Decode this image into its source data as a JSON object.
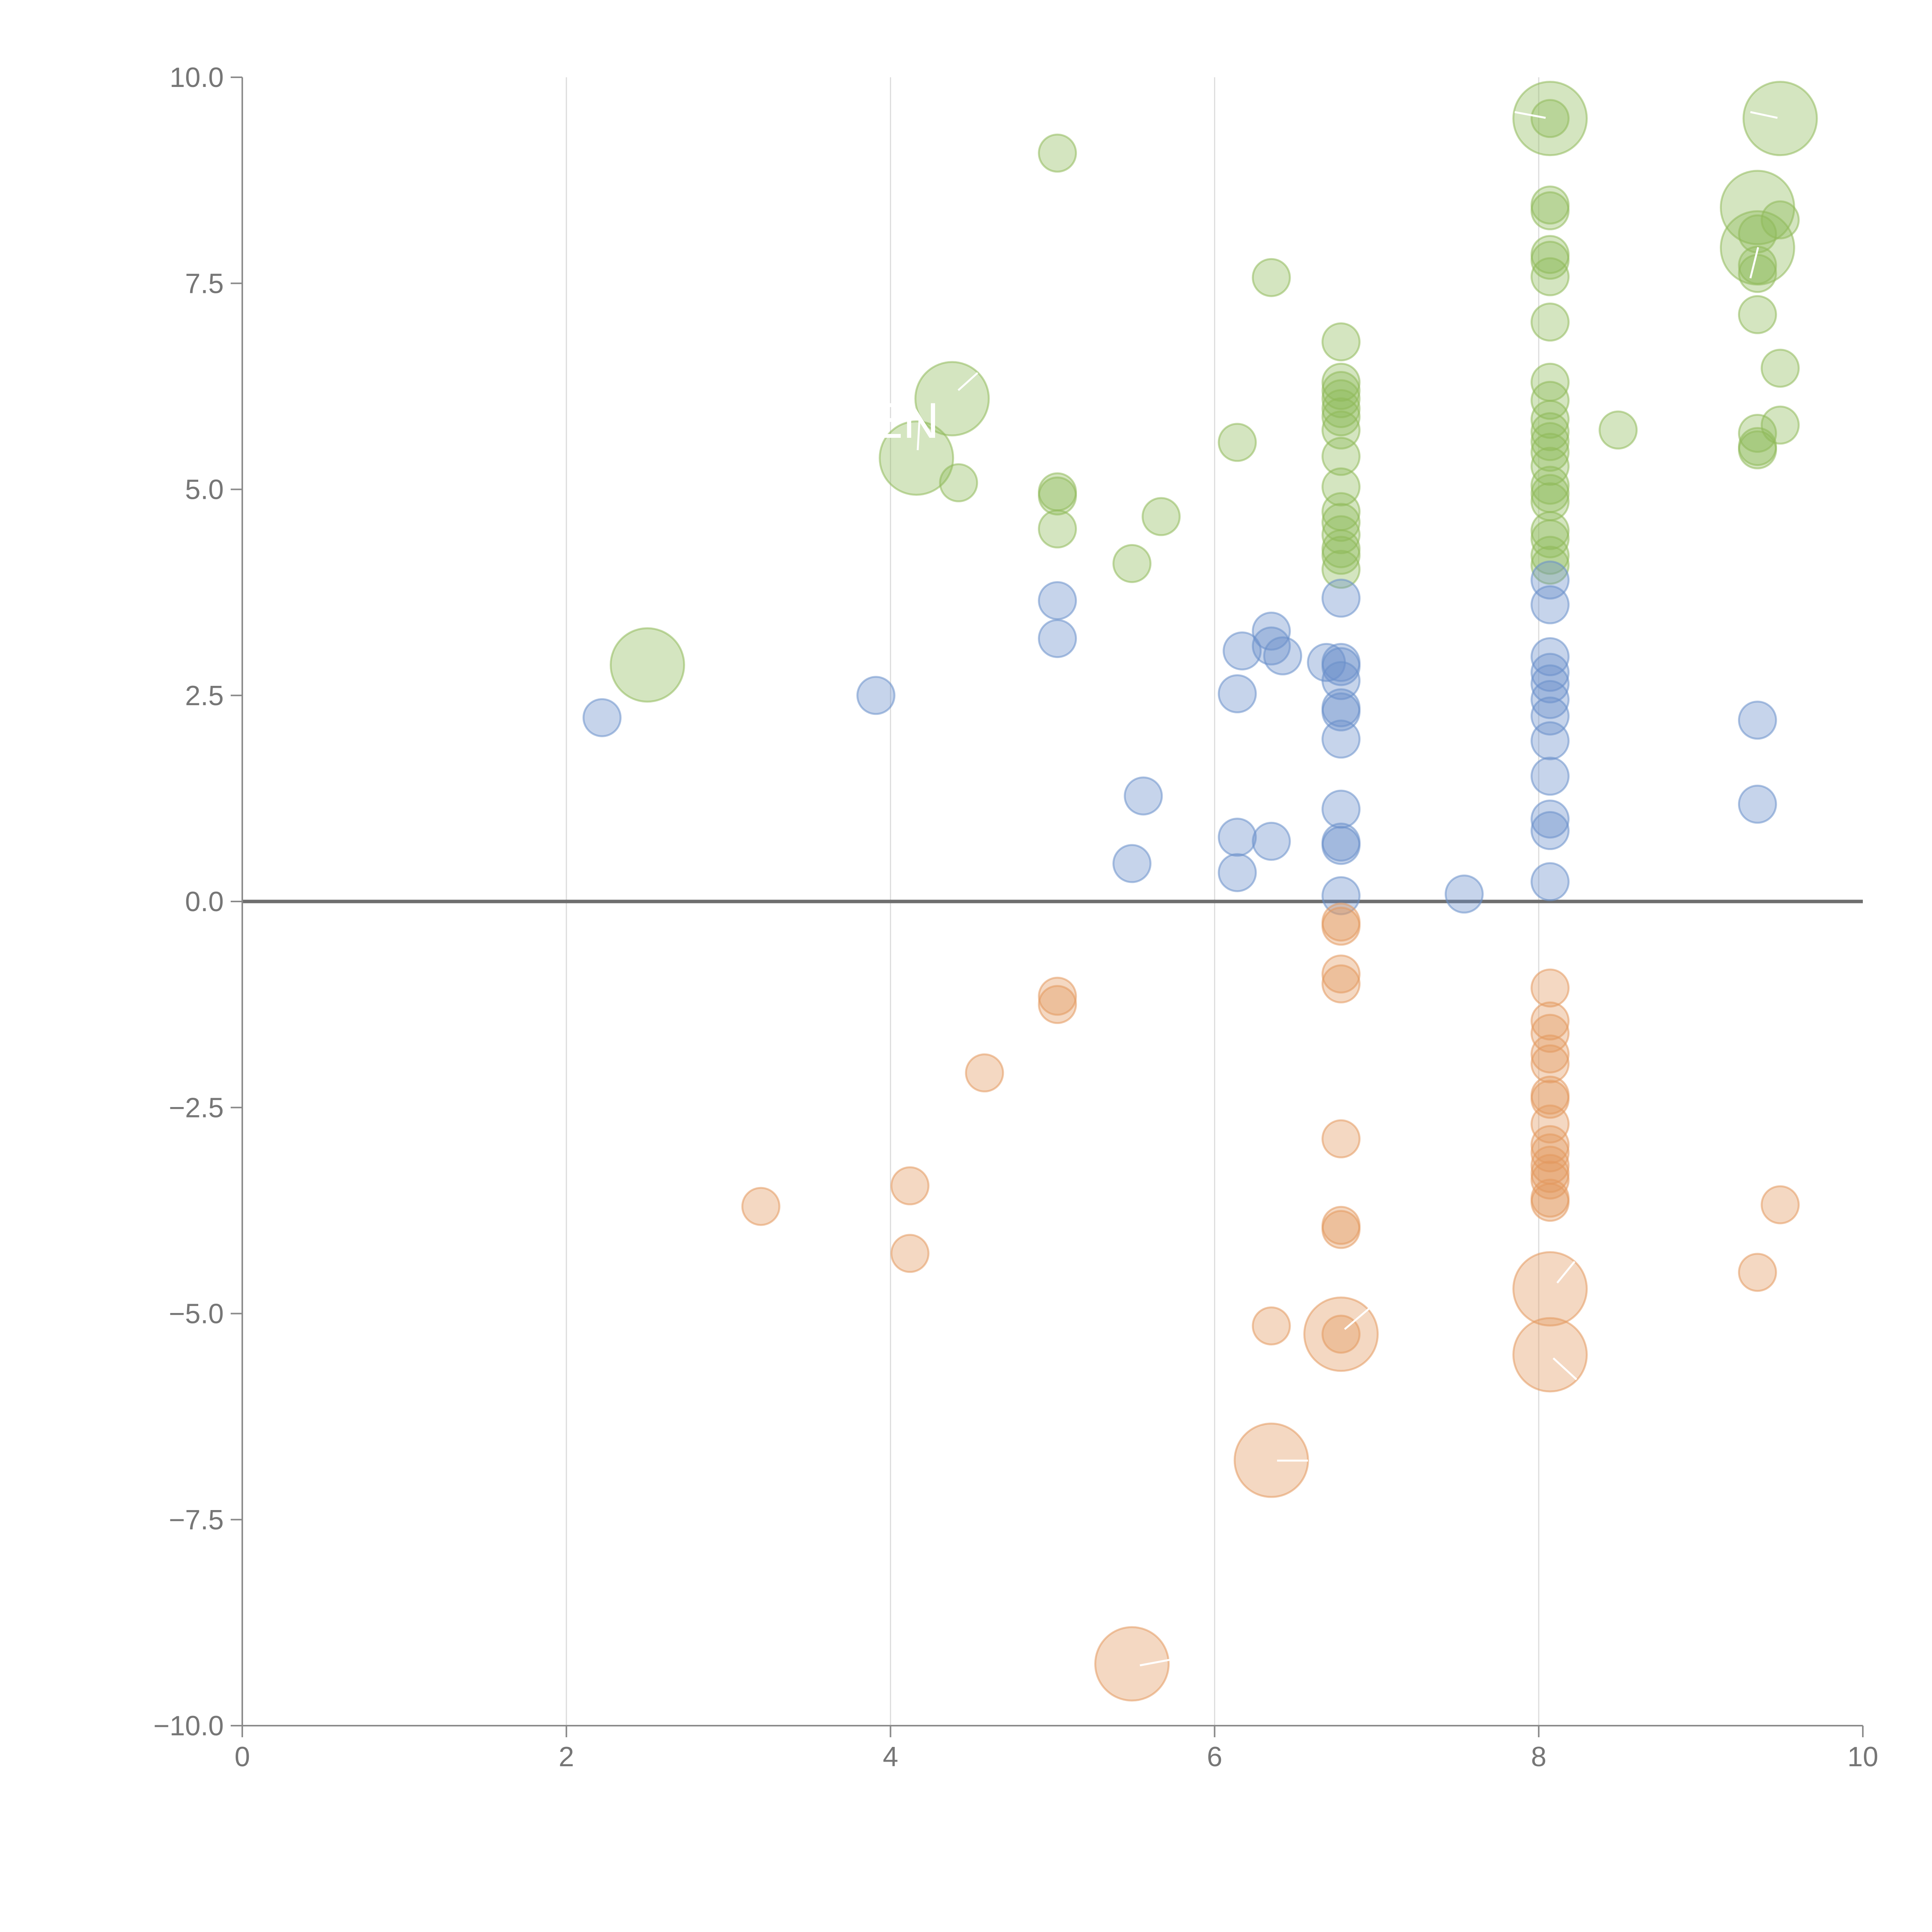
{
  "chart_data": {
    "type": "scatter",
    "title": "",
    "xlabel": "",
    "ylabel": "",
    "xlim": [
      0,
      10
    ],
    "ylim": [
      -10,
      10
    ],
    "grid": "vertical",
    "x_ticks": [
      "0",
      "2",
      "4",
      "6",
      "8",
      "10"
    ],
    "y_ticks": [
      "10.0",
      "7.5",
      "5.0",
      "2.5",
      "0.0",
      "−2.5",
      "−5.0",
      "−7.5",
      "−10.0"
    ],
    "x_tick_values": [
      0,
      2,
      4,
      6,
      8,
      10
    ],
    "y_tick_values": [
      10,
      7.5,
      5,
      2.5,
      0,
      -2.5,
      -5,
      -7.5,
      -10
    ],
    "annotations": [
      {
        "text": "EN",
        "x": 4.1,
        "y": 5.8
      }
    ],
    "series": [
      {
        "name": "green",
        "color": "#8fba5a",
        "points": [
          {
            "x": 5.03,
            "y": 9.08,
            "r": 1
          },
          {
            "x": 6.35,
            "y": 7.57,
            "r": 1
          },
          {
            "x": 4.38,
            "y": 6.1,
            "r": 3
          },
          {
            "x": 4.16,
            "y": 5.38,
            "r": 3
          },
          {
            "x": 4.42,
            "y": 5.08,
            "r": 1
          },
          {
            "x": 5.03,
            "y": 4.97,
            "r": 1
          },
          {
            "x": 5.03,
            "y": 4.92,
            "r": 1
          },
          {
            "x": 5.03,
            "y": 4.52,
            "r": 1
          },
          {
            "x": 5.49,
            "y": 4.1,
            "r": 1
          },
          {
            "x": 5.67,
            "y": 4.67,
            "r": 1
          },
          {
            "x": 6.14,
            "y": 5.57,
            "r": 1
          },
          {
            "x": 2.5,
            "y": 2.87,
            "r": 3
          },
          {
            "x": 6.78,
            "y": 6.79,
            "r": 1
          },
          {
            "x": 6.78,
            "y": 6.3,
            "r": 1
          },
          {
            "x": 6.78,
            "y": 6.2,
            "r": 1
          },
          {
            "x": 6.78,
            "y": 6.1,
            "r": 1
          },
          {
            "x": 6.78,
            "y": 5.98,
            "r": 1
          },
          {
            "x": 6.78,
            "y": 5.88,
            "r": 1
          },
          {
            "x": 6.78,
            "y": 5.72,
            "r": 1
          },
          {
            "x": 6.78,
            "y": 5.4,
            "r": 1
          },
          {
            "x": 6.78,
            "y": 5.03,
            "r": 1
          },
          {
            "x": 6.78,
            "y": 4.73,
            "r": 1
          },
          {
            "x": 6.78,
            "y": 4.6,
            "r": 1
          },
          {
            "x": 6.78,
            "y": 4.45,
            "r": 1
          },
          {
            "x": 6.78,
            "y": 4.28,
            "r": 1
          },
          {
            "x": 6.78,
            "y": 4.2,
            "r": 1
          },
          {
            "x": 6.78,
            "y": 4.03,
            "r": 1
          },
          {
            "x": 8.07,
            "y": 9.5,
            "r": 3
          },
          {
            "x": 8.07,
            "y": 9.5,
            "r": 1
          },
          {
            "x": 8.07,
            "y": 8.45,
            "r": 1
          },
          {
            "x": 8.07,
            "y": 8.38,
            "r": 1
          },
          {
            "x": 8.07,
            "y": 7.85,
            "r": 1
          },
          {
            "x": 8.07,
            "y": 7.78,
            "r": 1
          },
          {
            "x": 8.07,
            "y": 7.58,
            "r": 1
          },
          {
            "x": 8.07,
            "y": 7.03,
            "r": 1
          },
          {
            "x": 8.07,
            "y": 6.3,
            "r": 1
          },
          {
            "x": 8.07,
            "y": 6.08,
            "r": 1
          },
          {
            "x": 8.07,
            "y": 5.85,
            "r": 1
          },
          {
            "x": 8.07,
            "y": 5.7,
            "r": 1
          },
          {
            "x": 8.07,
            "y": 5.58,
            "r": 1
          },
          {
            "x": 8.07,
            "y": 5.45,
            "r": 1
          },
          {
            "x": 8.07,
            "y": 5.28,
            "r": 1
          },
          {
            "x": 8.07,
            "y": 5.05,
            "r": 1
          },
          {
            "x": 8.07,
            "y": 4.95,
            "r": 1
          },
          {
            "x": 8.07,
            "y": 4.85,
            "r": 1
          },
          {
            "x": 8.07,
            "y": 4.5,
            "r": 1
          },
          {
            "x": 8.07,
            "y": 4.4,
            "r": 1
          },
          {
            "x": 8.07,
            "y": 4.2,
            "r": 1
          },
          {
            "x": 8.07,
            "y": 4.08,
            "r": 1
          },
          {
            "x": 8.49,
            "y": 5.72,
            "r": 1
          },
          {
            "x": 9.35,
            "y": 8.42,
            "r": 3
          },
          {
            "x": 9.35,
            "y": 7.93,
            "r": 3
          },
          {
            "x": 9.35,
            "y": 8.1,
            "r": 1
          },
          {
            "x": 9.35,
            "y": 7.72,
            "r": 1
          },
          {
            "x": 9.35,
            "y": 7.62,
            "r": 1
          },
          {
            "x": 9.35,
            "y": 7.12,
            "r": 1
          },
          {
            "x": 9.35,
            "y": 5.68,
            "r": 1
          },
          {
            "x": 9.35,
            "y": 5.52,
            "r": 1
          },
          {
            "x": 9.35,
            "y": 5.48,
            "r": 1
          },
          {
            "x": 9.49,
            "y": 9.5,
            "r": 3
          },
          {
            "x": 9.49,
            "y": 8.27,
            "r": 1
          },
          {
            "x": 9.49,
            "y": 6.47,
            "r": 1
          },
          {
            "x": 9.49,
            "y": 5.78,
            "r": 1
          }
        ]
      },
      {
        "name": "blue",
        "color": "#6a8fca",
        "points": [
          {
            "x": 2.22,
            "y": 2.23,
            "r": 1
          },
          {
            "x": 3.91,
            "y": 2.5,
            "r": 1
          },
          {
            "x": 5.03,
            "y": 3.65,
            "r": 1
          },
          {
            "x": 5.03,
            "y": 3.19,
            "r": 1
          },
          {
            "x": 5.49,
            "y": 0.46,
            "r": 1
          },
          {
            "x": 5.56,
            "y": 1.28,
            "r": 1
          },
          {
            "x": 6.14,
            "y": 2.52,
            "r": 1
          },
          {
            "x": 6.14,
            "y": 0.78,
            "r": 1
          },
          {
            "x": 6.14,
            "y": 0.35,
            "r": 1
          },
          {
            "x": 6.17,
            "y": 3.04,
            "r": 1
          },
          {
            "x": 6.35,
            "y": 3.28,
            "r": 1
          },
          {
            "x": 6.35,
            "y": 3.1,
            "r": 1
          },
          {
            "x": 6.35,
            "y": 0.73,
            "r": 1
          },
          {
            "x": 6.42,
            "y": 2.98,
            "r": 1
          },
          {
            "x": 6.69,
            "y": 2.9,
            "r": 1
          },
          {
            "x": 6.78,
            "y": 3.68,
            "r": 1
          },
          {
            "x": 6.78,
            "y": 2.9,
            "r": 1
          },
          {
            "x": 6.78,
            "y": 2.85,
            "r": 1
          },
          {
            "x": 6.78,
            "y": 2.68,
            "r": 1
          },
          {
            "x": 6.78,
            "y": 2.35,
            "r": 1
          },
          {
            "x": 6.78,
            "y": 2.3,
            "r": 1
          },
          {
            "x": 6.78,
            "y": 1.97,
            "r": 1
          },
          {
            "x": 6.78,
            "y": 1.12,
            "r": 1
          },
          {
            "x": 6.78,
            "y": 0.72,
            "r": 1
          },
          {
            "x": 6.78,
            "y": 0.68,
            "r": 1
          },
          {
            "x": 6.78,
            "y": 0.07,
            "r": 1
          },
          {
            "x": 7.54,
            "y": 0.09,
            "r": 1
          },
          {
            "x": 8.07,
            "y": 3.9,
            "r": 1
          },
          {
            "x": 8.07,
            "y": 3.6,
            "r": 1
          },
          {
            "x": 8.07,
            "y": 2.97,
            "r": 1
          },
          {
            "x": 8.07,
            "y": 2.78,
            "r": 1
          },
          {
            "x": 8.07,
            "y": 2.64,
            "r": 1
          },
          {
            "x": 8.07,
            "y": 2.45,
            "r": 1
          },
          {
            "x": 8.07,
            "y": 2.25,
            "r": 1
          },
          {
            "x": 8.07,
            "y": 1.95,
            "r": 1
          },
          {
            "x": 8.07,
            "y": 1.52,
            "r": 1
          },
          {
            "x": 8.07,
            "y": 1.0,
            "r": 1
          },
          {
            "x": 8.07,
            "y": 0.86,
            "r": 1
          },
          {
            "x": 8.07,
            "y": 0.24,
            "r": 1
          },
          {
            "x": 9.35,
            "y": 2.2,
            "r": 1
          },
          {
            "x": 9.35,
            "y": 1.18,
            "r": 1
          }
        ]
      },
      {
        "name": "orange",
        "color": "#e3995e",
        "points": [
          {
            "x": 3.2,
            "y": -3.7,
            "r": 1
          },
          {
            "x": 4.12,
            "y": -3.45,
            "r": 1
          },
          {
            "x": 4.12,
            "y": -4.27,
            "r": 1
          },
          {
            "x": 4.58,
            "y": -2.08,
            "r": 1
          },
          {
            "x": 5.03,
            "y": -1.15,
            "r": 1
          },
          {
            "x": 5.03,
            "y": -1.25,
            "r": 1
          },
          {
            "x": 5.49,
            "y": -9.25,
            "r": 3
          },
          {
            "x": 6.35,
            "y": -5.15,
            "r": 1
          },
          {
            "x": 6.35,
            "y": -6.78,
            "r": 3
          },
          {
            "x": 6.78,
            "y": -0.25,
            "r": 1
          },
          {
            "x": 6.78,
            "y": -0.3,
            "r": 1
          },
          {
            "x": 6.78,
            "y": -0.88,
            "r": 1
          },
          {
            "x": 6.78,
            "y": -1.0,
            "r": 1
          },
          {
            "x": 6.78,
            "y": -2.88,
            "r": 1
          },
          {
            "x": 6.78,
            "y": -3.93,
            "r": 1
          },
          {
            "x": 6.78,
            "y": -3.98,
            "r": 1
          },
          {
            "x": 6.78,
            "y": -5.25,
            "r": 3
          },
          {
            "x": 6.78,
            "y": -5.25,
            "r": 1
          },
          {
            "x": 8.07,
            "y": -1.05,
            "r": 1
          },
          {
            "x": 8.07,
            "y": -1.45,
            "r": 1
          },
          {
            "x": 8.07,
            "y": -1.6,
            "r": 1
          },
          {
            "x": 8.07,
            "y": -1.85,
            "r": 1
          },
          {
            "x": 8.07,
            "y": -1.97,
            "r": 1
          },
          {
            "x": 8.07,
            "y": -2.35,
            "r": 1
          },
          {
            "x": 8.07,
            "y": -2.4,
            "r": 1
          },
          {
            "x": 8.07,
            "y": -2.7,
            "r": 1
          },
          {
            "x": 8.07,
            "y": -2.95,
            "r": 1
          },
          {
            "x": 8.07,
            "y": -3.05,
            "r": 1
          },
          {
            "x": 8.07,
            "y": -3.2,
            "r": 1
          },
          {
            "x": 8.07,
            "y": -3.3,
            "r": 1
          },
          {
            "x": 8.07,
            "y": -3.38,
            "r": 1
          },
          {
            "x": 8.07,
            "y": -3.6,
            "r": 1
          },
          {
            "x": 8.07,
            "y": -3.65,
            "r": 1
          },
          {
            "x": 8.07,
            "y": -4.7,
            "r": 3
          },
          {
            "x": 8.07,
            "y": -5.5,
            "r": 3
          },
          {
            "x": 9.35,
            "y": -4.5,
            "r": 1
          },
          {
            "x": 9.49,
            "y": -3.68,
            "r": 1
          }
        ]
      }
    ]
  }
}
